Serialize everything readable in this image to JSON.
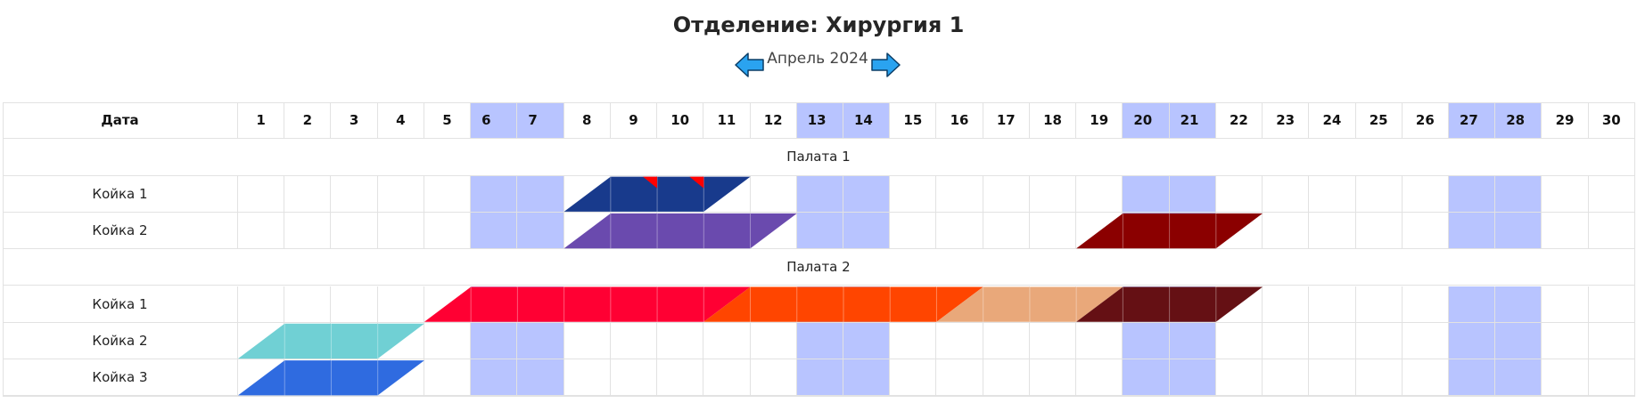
{
  "title": "Отделение: Хирургия 1",
  "nav": {
    "month": "Апрель 2024",
    "prev_icon": "arrow-left-icon",
    "next_icon": "arrow-right-icon"
  },
  "colors": {
    "weekend": "#b8c4ff",
    "arrow": "#2aa3f0"
  },
  "table": {
    "date_header": "Дата",
    "days": [
      "1",
      "2",
      "3",
      "4",
      "5",
      "6",
      "7",
      "8",
      "9",
      "10",
      "11",
      "12",
      "13",
      "14",
      "15",
      "16",
      "17",
      "18",
      "19",
      "20",
      "21",
      "22",
      "23",
      "24",
      "25",
      "26",
      "27",
      "28",
      "29",
      "30"
    ],
    "weekend_days": [
      6,
      7,
      13,
      14,
      20,
      21,
      27,
      28
    ],
    "wards": [
      {
        "name": "Палата 1",
        "beds": [
          {
            "label": "Койка 1",
            "stays": [
              {
                "start": 8,
                "end": 11,
                "color": "#183a8c",
                "start_half": true,
                "end_half": true,
                "marks": [
                  9,
                  10
                ]
              }
            ]
          },
          {
            "label": "Койка 2",
            "stays": [
              {
                "start": 8,
                "end": 12,
                "color": "#6a4aae",
                "start_half": true,
                "end_half": true
              },
              {
                "start": 19,
                "end": 22,
                "color": "#8b0000",
                "start_half": true,
                "end_half": true
              }
            ]
          }
        ]
      },
      {
        "name": "Палата 2",
        "beds": [
          {
            "label": "Койка 1",
            "stays": [
              {
                "start": 5,
                "end": 11,
                "color": "#ff0033",
                "start_half": true,
                "end_half": true
              },
              {
                "start": 11,
                "end": 16,
                "color": "#ff4500",
                "start_half": true,
                "end_half": true
              },
              {
                "start": 16,
                "end": 19,
                "color": "#e9a87a",
                "start_half": true,
                "end_half": true
              },
              {
                "start": 19,
                "end": 22,
                "color": "#651014",
                "start_half": true,
                "end_half": true
              }
            ]
          },
          {
            "label": "Койка 2",
            "stays": [
              {
                "start": 1,
                "end": 4,
                "color": "#70d0d4",
                "start_half": true,
                "end_half": true
              }
            ]
          },
          {
            "label": "Койка 3",
            "stays": [
              {
                "start": 1,
                "end": 4,
                "color": "#2f6be0",
                "start_half": true,
                "end_half": true
              }
            ]
          }
        ]
      }
    ]
  }
}
